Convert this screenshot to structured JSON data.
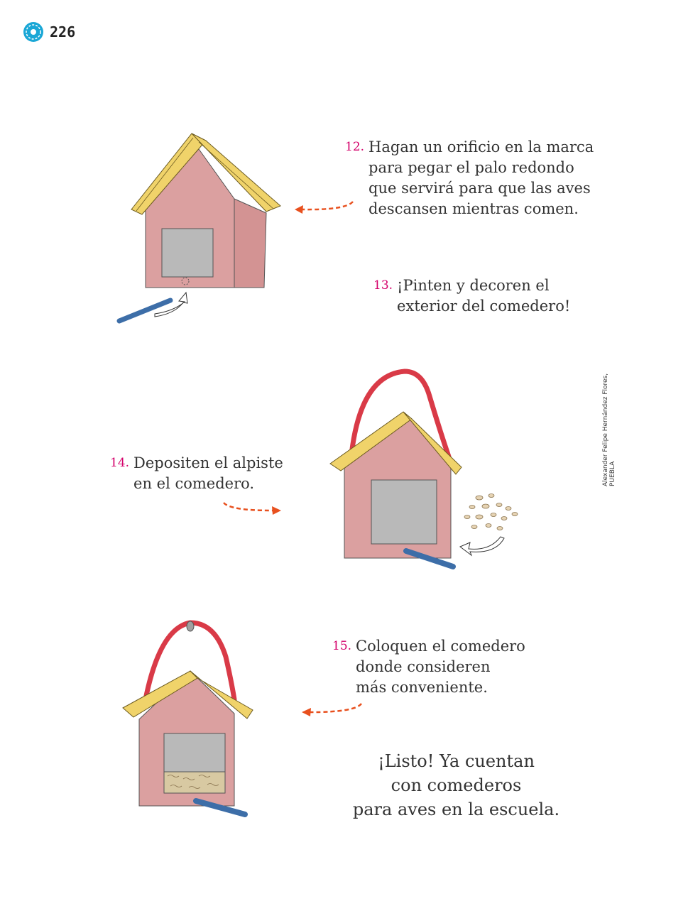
{
  "header": {
    "page_number": "226",
    "badge_icon": "flower-badge-icon"
  },
  "steps": [
    {
      "number": "12.",
      "text": "Hagan un orificio en la marca\npara pegar el palo redondo\nque servirá para que las aves\ndescansen mientras comen."
    },
    {
      "number": "13.",
      "text": "¡Pinten y decoren el\nexterior del comedero!"
    },
    {
      "number": "14.",
      "text": "Depositen el alpiste\nen el comedero."
    },
    {
      "number": "15.",
      "text": "Coloquen el comedero\ndonde consideren\nmás conveniente."
    }
  ],
  "final_message": "¡Listo! Ya cuentan\ncon comederos\npara aves en la escuela.",
  "credit": "Alexander Felipe Hernández Flores, PUEBLA",
  "colors": {
    "accent_number": "#d4006a",
    "arrow": "#e8501e",
    "house_wall": "#dba0a0",
    "roof": "#f0d36a",
    "window": "#b9b9b9",
    "perch": "#3d6ea8",
    "hanger": "#d93a47",
    "badge": "#1aa7d6"
  }
}
